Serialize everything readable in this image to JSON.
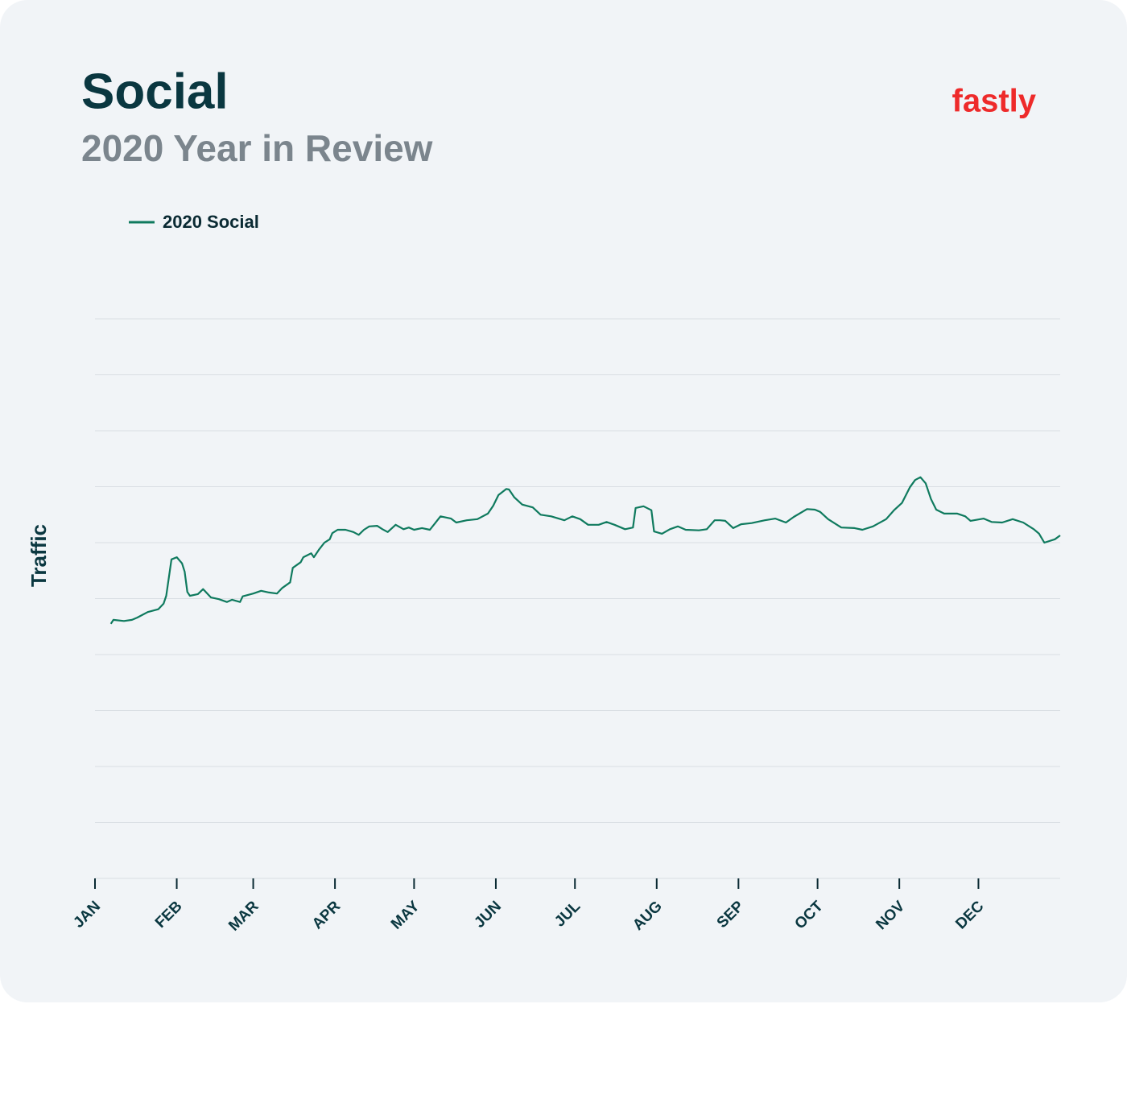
{
  "chart_data": {
    "type": "line",
    "title": "Social",
    "subtitle": "2020 Year in Review",
    "logo": "fastly",
    "ylabel": "Traffic",
    "x": [
      6,
      7,
      11,
      14,
      16,
      20,
      24,
      26,
      27,
      29,
      31,
      33,
      34,
      35,
      36,
      39,
      41,
      44,
      47,
      50,
      52,
      55,
      56,
      60,
      63,
      66,
      69,
      71,
      74,
      75,
      78,
      79,
      82,
      83,
      85,
      87,
      89,
      90,
      92,
      95,
      98,
      100,
      102,
      104,
      107,
      109,
      111,
      114,
      117,
      119,
      121,
      124,
      127,
      129,
      131,
      135,
      137,
      141,
      145,
      149,
      151,
      153,
      156,
      157,
      159,
      162,
      166,
      169,
      173,
      178,
      181,
      184,
      187,
      191,
      194,
      197,
      201,
      204,
      205,
      208,
      211,
      212,
      215,
      218,
      221,
      224,
      229,
      232,
      235,
      237,
      239,
      242,
      245,
      249,
      254,
      258,
      262,
      265,
      270,
      273,
      275,
      278,
      283,
      288,
      291,
      295,
      300,
      303,
      306,
      309,
      311,
      313,
      315,
      317,
      319,
      322,
      327,
      330,
      332,
      337,
      340,
      344,
      348,
      352,
      356,
      358,
      360,
      364,
      366
    ],
    "series": [
      {
        "name": "2020 Social",
        "color": "#0f7a5e",
        "values": [
          4.55,
          4.62,
          4.6,
          4.62,
          4.66,
          4.76,
          4.81,
          4.91,
          5.05,
          5.7,
          5.74,
          5.63,
          5.48,
          5.12,
          5.05,
          5.08,
          5.17,
          5.02,
          4.99,
          4.94,
          4.98,
          4.94,
          5.04,
          5.09,
          5.14,
          5.11,
          5.09,
          5.19,
          5.29,
          5.55,
          5.65,
          5.74,
          5.81,
          5.74,
          5.88,
          6.0,
          6.06,
          6.17,
          6.23,
          6.23,
          6.19,
          6.14,
          6.23,
          6.29,
          6.3,
          6.24,
          6.19,
          6.32,
          6.24,
          6.27,
          6.23,
          6.26,
          6.23,
          6.35,
          6.47,
          6.43,
          6.36,
          6.4,
          6.42,
          6.52,
          6.66,
          6.85,
          6.96,
          6.95,
          6.81,
          6.68,
          6.63,
          6.5,
          6.47,
          6.4,
          6.47,
          6.42,
          6.32,
          6.32,
          6.37,
          6.32,
          6.24,
          6.27,
          6.62,
          6.65,
          6.58,
          6.2,
          6.16,
          6.24,
          6.29,
          6.23,
          6.22,
          6.24,
          6.4,
          6.4,
          6.39,
          6.26,
          6.33,
          6.35,
          6.4,
          6.43,
          6.36,
          6.46,
          6.6,
          6.59,
          6.55,
          6.42,
          6.27,
          6.26,
          6.23,
          6.29,
          6.42,
          6.58,
          6.71,
          6.99,
          7.12,
          7.17,
          7.06,
          6.78,
          6.59,
          6.52,
          6.52,
          6.47,
          6.39,
          6.43,
          6.37,
          6.36,
          6.42,
          6.36,
          6.24,
          6.16,
          6.0,
          6.06,
          6.13
        ]
      }
    ],
    "xlim": [
      0,
      366
    ],
    "xticks": [
      {
        "value": 0,
        "label": "JAN"
      },
      {
        "value": 31,
        "label": "FEB"
      },
      {
        "value": 60,
        "label": "MAR"
      },
      {
        "value": 91,
        "label": "APR"
      },
      {
        "value": 121,
        "label": "MAY"
      },
      {
        "value": 152,
        "label": "JUN"
      },
      {
        "value": 182,
        "label": "JUL"
      },
      {
        "value": 213,
        "label": "AUG"
      },
      {
        "value": 244,
        "label": "SEP"
      },
      {
        "value": 274,
        "label": "OCT"
      },
      {
        "value": 305,
        "label": "NOV"
      },
      {
        "value": 335,
        "label": "DEC"
      }
    ],
    "ylim": [
      0,
      10
    ],
    "yticks": [
      0,
      1,
      2,
      3,
      4,
      5,
      6,
      7,
      8,
      9,
      10
    ],
    "grid": true
  }
}
